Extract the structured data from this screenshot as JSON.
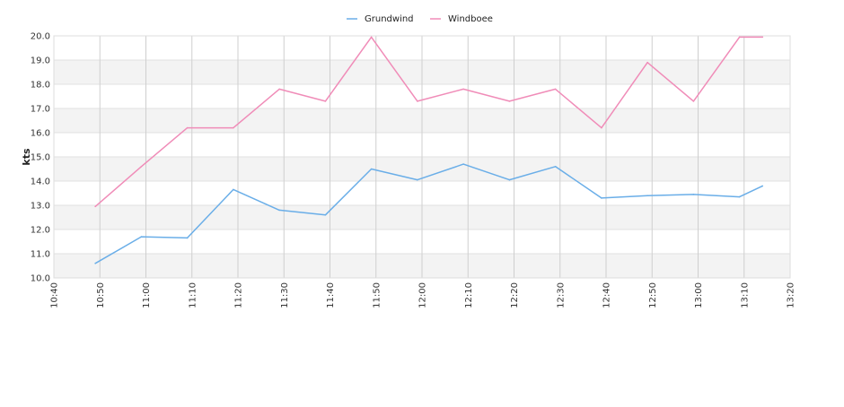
{
  "chart_data": {
    "type": "line",
    "ylabel": "kts",
    "ylim": [
      10.0,
      20.0
    ],
    "y_ticks": [
      "10.0",
      "11.0",
      "12.0",
      "13.0",
      "14.0",
      "15.0",
      "16.0",
      "17.0",
      "18.0",
      "19.0",
      "20.0"
    ],
    "x_ticks": [
      "10:40",
      "10:50",
      "11:00",
      "11:10",
      "11:20",
      "11:30",
      "11:40",
      "11:50",
      "12:00",
      "12:10",
      "12:20",
      "12:30",
      "12:40",
      "12:50",
      "13:00",
      "13:10",
      "13:20"
    ],
    "xlim": [
      "10:40",
      "13:20"
    ],
    "grid": true,
    "alternating_bands": true,
    "legend_position": "top-center",
    "series": [
      {
        "name": "Grundwind",
        "color": "#6aaee8",
        "x": [
          "10:49",
          "10:59",
          "11:09",
          "11:19",
          "11:29",
          "11:39",
          "11:49",
          "11:59",
          "12:09",
          "12:19",
          "12:29",
          "12:39",
          "12:49",
          "12:59",
          "13:09",
          "13:14"
        ],
        "values": [
          10.6,
          11.7,
          11.65,
          13.65,
          12.8,
          12.6,
          14.5,
          14.05,
          14.7,
          14.05,
          14.6,
          13.3,
          13.4,
          13.45,
          13.35,
          13.8
        ]
      },
      {
        "name": "Windboee",
        "color": "#f08cb8",
        "x": [
          "10:49",
          "10:59",
          "11:09",
          "11:19",
          "11:29",
          "11:39",
          "11:49",
          "11:59",
          "12:09",
          "12:19",
          "12:29",
          "12:39",
          "12:49",
          "12:59",
          "13:09",
          "13:14"
        ],
        "values": [
          12.95,
          14.6,
          16.2,
          16.2,
          17.8,
          17.3,
          19.95,
          17.3,
          17.8,
          17.3,
          17.8,
          16.2,
          18.9,
          17.3,
          19.95,
          19.95
        ]
      }
    ]
  }
}
